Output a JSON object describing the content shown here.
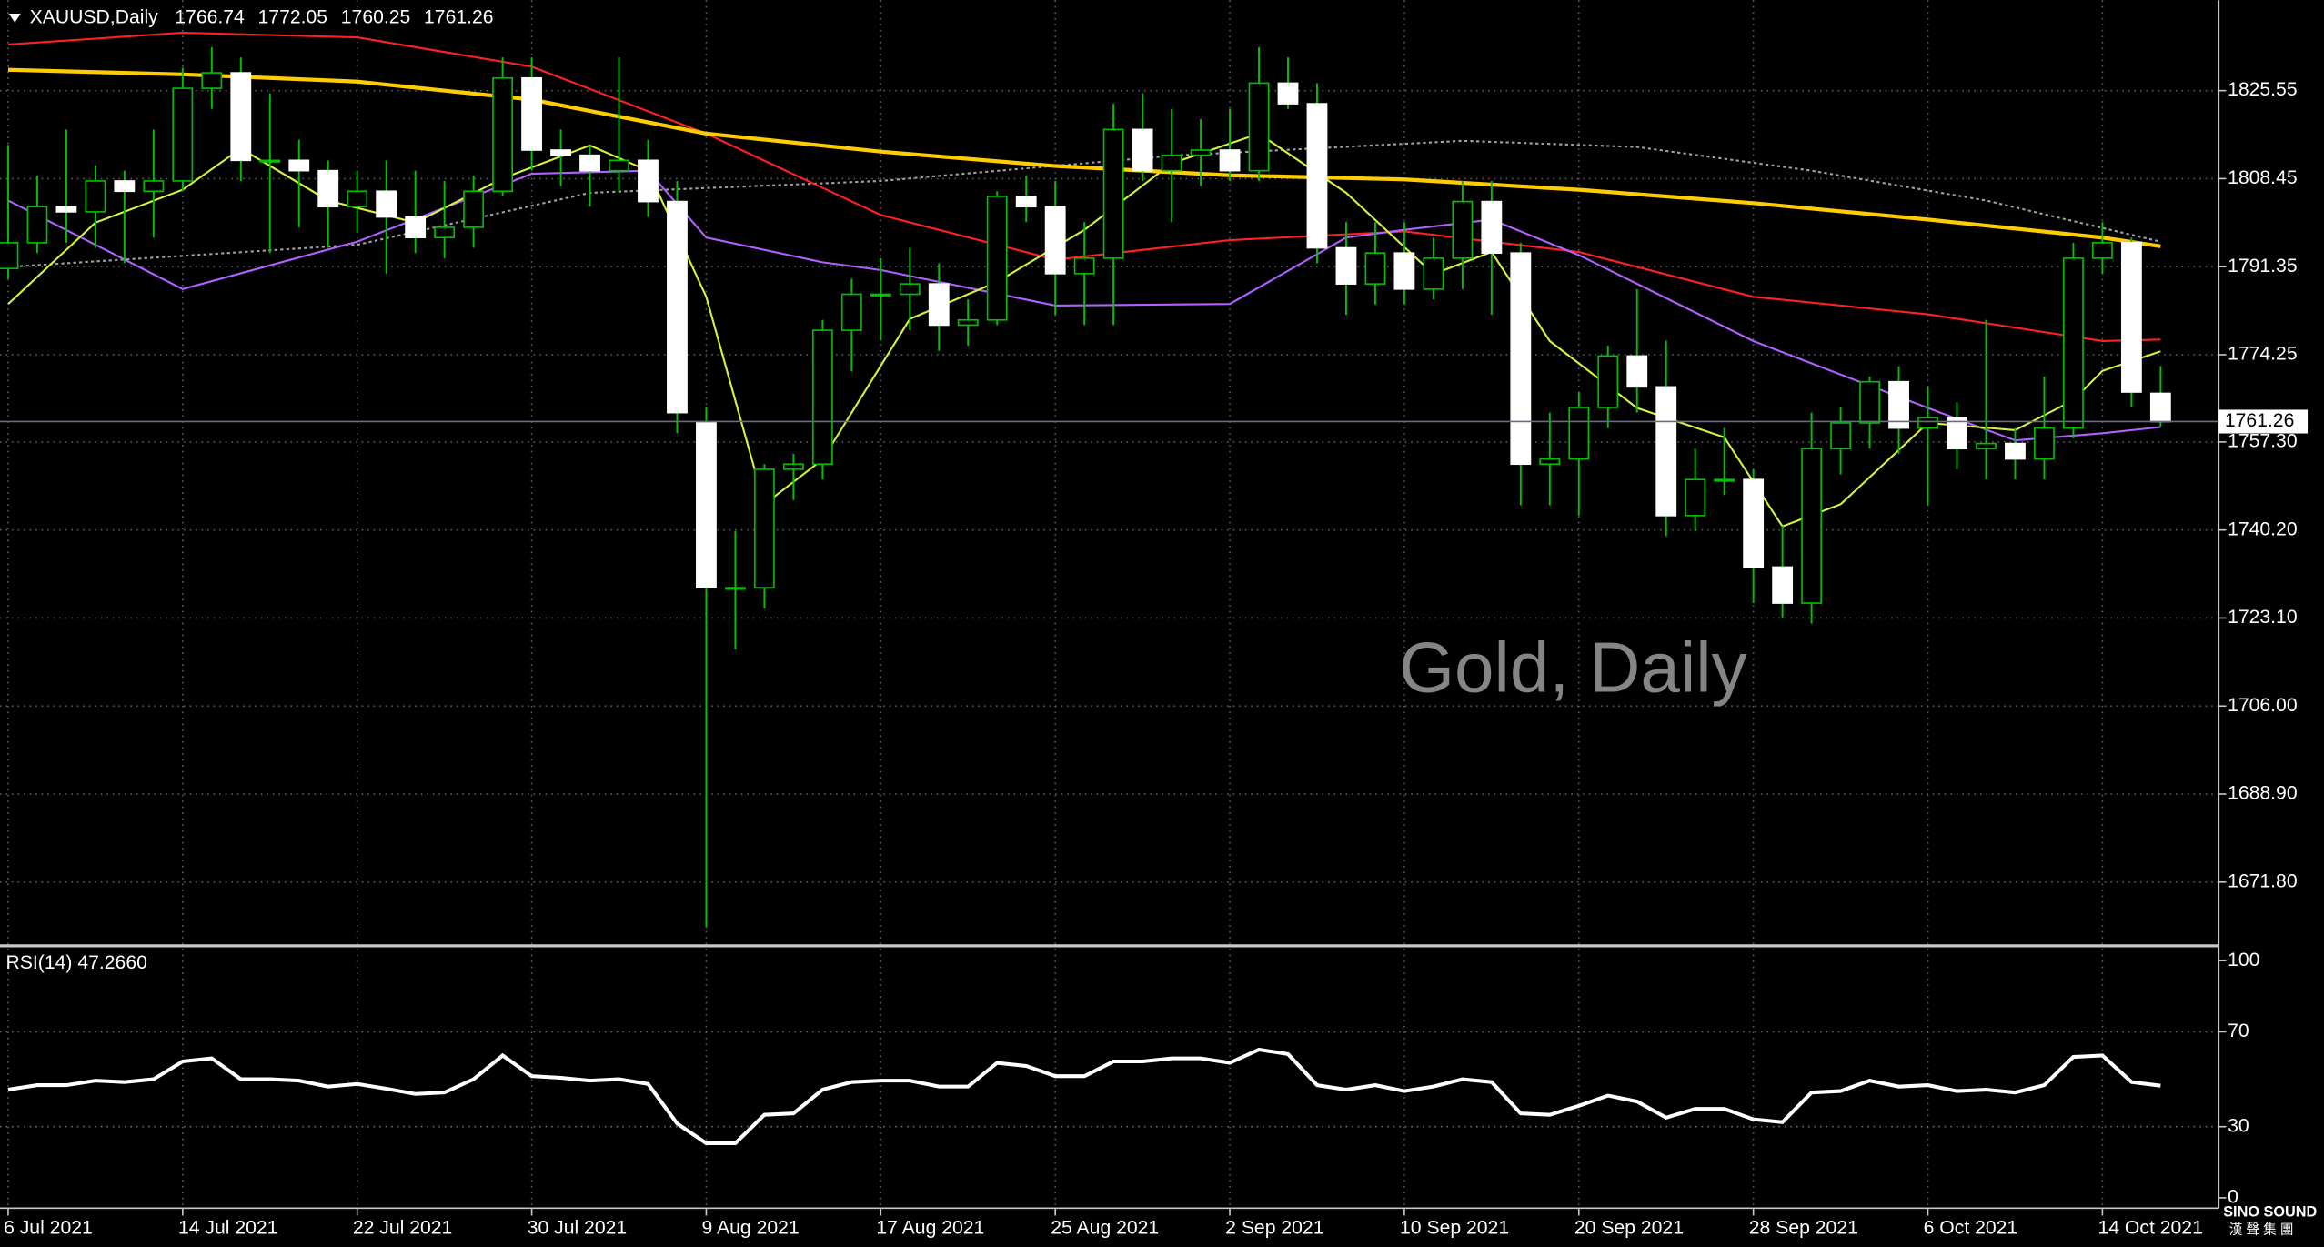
{
  "chart_data": [
    {
      "type": "candlestick",
      "title": "XAUUSD,Daily",
      "annotation": "Gold, Daily",
      "categories": [
        "6 Jul 2021",
        null,
        null,
        null,
        null,
        null,
        "14 Jul 2021",
        null,
        null,
        null,
        null,
        null,
        "22 Jul 2021",
        null,
        null,
        null,
        null,
        null,
        "30 Jul 2021",
        null,
        null,
        null,
        null,
        null,
        "9 Aug 2021",
        null,
        null,
        null,
        null,
        null,
        "17 Aug 2021",
        null,
        null,
        null,
        null,
        null,
        "25 Aug 2021",
        null,
        null,
        null,
        null,
        null,
        "2 Sep 2021",
        null,
        null,
        null,
        null,
        null,
        "10 Sep 2021",
        null,
        null,
        null,
        null,
        null,
        "20 Sep 2021",
        null,
        null,
        null,
        null,
        null,
        "28 Sep 2021",
        null,
        null,
        null,
        null,
        null,
        "6 Oct 2021",
        null,
        null,
        null,
        null,
        null,
        "14 Oct 2021",
        null,
        null
      ],
      "open": [
        1791,
        1796,
        1803,
        1802,
        1808,
        1806,
        1808,
        1826,
        1829,
        1812,
        1812,
        1810,
        1803,
        1806,
        1801,
        1797,
        1799,
        1806,
        1828,
        1814,
        1813,
        1810,
        1812,
        1804,
        1761,
        1729,
        1729,
        1752,
        1753,
        1779,
        1786,
        1786,
        1788,
        1780,
        1781,
        1805,
        1803,
        1790,
        1793,
        1818,
        1810,
        1813,
        1814,
        1810,
        1827,
        1823,
        1795,
        1788,
        1794,
        1787,
        1793,
        1804,
        1794,
        1753,
        1754,
        1764,
        1774,
        1768,
        1743,
        1750,
        1750,
        1733,
        1726,
        1756,
        1761,
        1769,
        1760,
        1762,
        1756,
        1757,
        1754,
        1760,
        1793,
        1796,
        1766.74
      ],
      "high": [
        1815,
        1809,
        1818,
        1811,
        1810,
        1818,
        1830,
        1834,
        1832,
        1825,
        1816,
        1812,
        1810,
        1812,
        1810,
        1808,
        1809,
        1832,
        1832,
        1818,
        1815,
        1832,
        1816,
        1808,
        1764,
        1740,
        1753,
        1755,
        1781,
        1789,
        1793,
        1795,
        1792,
        1785,
        1806,
        1809,
        1808,
        1800,
        1823,
        1825,
        1822,
        1820,
        1822,
        1834,
        1832,
        1827,
        1800,
        1800,
        1800,
        1797,
        1808,
        1808,
        1796,
        1763,
        1767,
        1776,
        1787,
        1777,
        1756,
        1760,
        1752,
        1741,
        1763,
        1764,
        1770,
        1772,
        1768,
        1765,
        1781,
        1760,
        1770,
        1796,
        1800,
        1797,
        1772.05
      ],
      "low": [
        1789,
        1794,
        1796,
        1795,
        1792,
        1797,
        1806,
        1822,
        1808,
        1794,
        1799,
        1795,
        1798,
        1790,
        1794,
        1793,
        1795,
        1805,
        1810,
        1807,
        1803,
        1806,
        1801,
        1759,
        1663,
        1717,
        1725,
        1746,
        1750,
        1771,
        1777,
        1779,
        1775,
        1776,
        1780,
        1800,
        1782,
        1780,
        1780,
        1808,
        1800,
        1807,
        1808,
        1808,
        1822,
        1792,
        1782,
        1784,
        1784,
        1785,
        1787,
        1782,
        1745,
        1745,
        1743,
        1760,
        1763,
        1739,
        1740,
        1747,
        1726,
        1723,
        1722,
        1751,
        1756,
        1755,
        1745,
        1752,
        1750,
        1750,
        1750,
        1758,
        1790,
        1764,
        1760.25
      ],
      "close": [
        1796,
        1803,
        1802,
        1808,
        1806,
        1808,
        1826,
        1829,
        1812,
        1812,
        1810,
        1803,
        1806,
        1801,
        1797,
        1799,
        1806,
        1828,
        1814,
        1813,
        1810,
        1812,
        1804,
        1763,
        1729,
        1729,
        1752,
        1753,
        1779,
        1786,
        1786,
        1788,
        1780,
        1781,
        1805,
        1803,
        1790,
        1793,
        1818,
        1810,
        1813,
        1814,
        1810,
        1827,
        1823,
        1795,
        1788,
        1794,
        1787,
        1793,
        1804,
        1794,
        1753,
        1754,
        1764,
        1774,
        1768,
        1743,
        1750,
        1750,
        1733,
        1726,
        1756,
        1761,
        1769,
        1760,
        1762,
        1756,
        1757,
        1754,
        1760,
        1793,
        1796,
        1767,
        1761.26
      ],
      "colors": {
        "up": "#000000",
        "down": "#ffffff",
        "wick": "#00c000"
      },
      "series": [
        {
          "color": "#a0a0a0",
          "style": "dotted",
          "x": [
            0,
            12,
            20,
            30,
            40,
            50,
            56,
            62,
            68,
            74
          ],
          "values": [
            1791.3,
            1795.6,
            1805.7,
            1808,
            1812.9,
            1815.8,
            1814.6,
            1810,
            1804.2,
            1796.2
          ]
        },
        {
          "color": "#ff2020",
          "x": [
            0,
            6,
            12,
            18,
            24,
            30,
            36,
            42,
            48,
            54,
            60,
            66,
            72,
            74
          ],
          "values": [
            1834.5,
            1836.8,
            1835.9,
            1830.2,
            1817.2,
            1801.4,
            1792.7,
            1796.5,
            1798.2,
            1794.2,
            1785.5,
            1782.1,
            1776.9,
            1777.2
          ]
        },
        {
          "color": "#b060ff",
          "x": [
            0,
            6,
            12,
            18,
            22,
            24,
            28,
            30,
            36,
            42,
            46,
            48,
            51,
            54,
            60,
            66,
            69,
            72,
            74
          ],
          "values": [
            1804.2,
            1787,
            1796.2,
            1809.4,
            1810,
            1797,
            1792.2,
            1790.7,
            1783.8,
            1784.1,
            1797,
            1798.5,
            1800.5,
            1793.6,
            1776.9,
            1763.9,
            1757.6,
            1759,
            1760.2
          ]
        },
        {
          "color": "#d8f040",
          "x": [
            0,
            3,
            6,
            8,
            11,
            14,
            17,
            20,
            22,
            24,
            26,
            28,
            31,
            34,
            37,
            40,
            43,
            46,
            49,
            51,
            53,
            56,
            59,
            61,
            63,
            66,
            69,
            71,
            72,
            74
          ],
          "values": [
            1784.1,
            1799.9,
            1806.3,
            1814.3,
            1804.2,
            1799.9,
            1808.5,
            1814.9,
            1810,
            1785.5,
            1745.2,
            1753.9,
            1781.2,
            1788.4,
            1798.5,
            1811.4,
            1817.2,
            1805.7,
            1789.9,
            1794.2,
            1776.9,
            1763.9,
            1758.2,
            1740.9,
            1745.2,
            1761,
            1759.6,
            1765.4,
            1771.1,
            1774.9
          ]
        },
        {
          "color": "#ffcc00",
          "style": "thick",
          "x": [
            0,
            6,
            12,
            18,
            24,
            30,
            36,
            42,
            48,
            54,
            60,
            66,
            72,
            74
          ],
          "values": [
            1829.6,
            1828.7,
            1827.3,
            1823.8,
            1817.2,
            1813.7,
            1810.9,
            1809.1,
            1808.3,
            1806.3,
            1803.7,
            1800.5,
            1797,
            1795.3
          ]
        }
      ],
      "ylim": [
        1659.7,
        1843.1
      ],
      "yticks": [
        1825.55,
        1808.45,
        1791.35,
        1774.25,
        {
          "value": 1757.3,
          "label": "1757.30"
        },
        {
          "value": 1740.2,
          "label": "1740.20"
        },
        {
          "value": 1723.1,
          "label": "1723.10"
        },
        {
          "value": 1706,
          "label": "1706.00"
        },
        {
          "value": 1688.9,
          "label": "1688.90"
        },
        {
          "value": 1671.8,
          "label": "1671.80"
        }
      ],
      "grid": true
    },
    {
      "type": "line",
      "title": "RSI(14) 47.2660",
      "color": "#ffffff",
      "values": [
        45.6,
        47.5,
        47.5,
        49.4,
        48.8,
        50,
        57.5,
        58.8,
        50,
        50,
        49.4,
        46.9,
        48,
        46,
        43.8,
        44.4,
        50,
        60,
        51.3,
        50.6,
        49.4,
        50,
        48,
        31.3,
        23,
        23,
        35,
        35.6,
        45.6,
        48.8,
        49.4,
        49.4,
        46.9,
        46.9,
        56.9,
        55.6,
        51.3,
        51.3,
        57.5,
        57.5,
        58.8,
        58.8,
        56.9,
        62.5,
        60.6,
        47.5,
        45.6,
        47.5,
        45,
        46.9,
        50,
        48.8,
        35.6,
        35,
        38.8,
        43.1,
        40.6,
        33.8,
        37.5,
        37.5,
        33.1,
        31.9,
        44.4,
        45,
        49.4,
        46.9,
        47.5,
        45,
        45.6,
        44.4,
        47.5,
        59.4,
        60,
        48.8,
        47.266
      ],
      "ylim": [
        0,
        100
      ],
      "yticks": [
        0,
        30,
        70,
        100
      ],
      "levels": [
        30,
        70
      ]
    }
  ],
  "logo": {
    "name": "SINO SOUND",
    "subtitle": "漢 聲 集 團"
  }
}
